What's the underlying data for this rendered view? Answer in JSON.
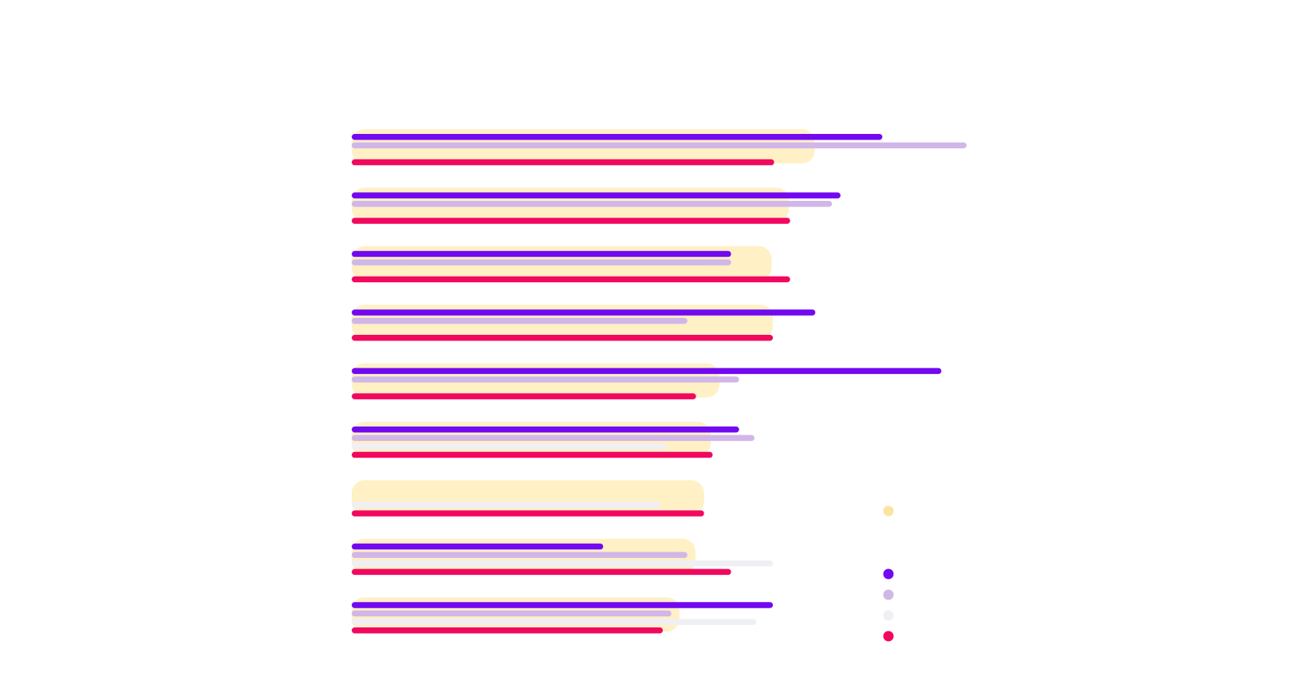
{
  "chart_data": {
    "type": "bar",
    "orientation": "horizontal",
    "title": "",
    "xlabel": "",
    "ylabel": "",
    "xlim": [
      0,
      100
    ],
    "grid": false,
    "legend_position": "bottom-right",
    "categories": [
      "",
      "",
      "",
      "",
      "",
      "",
      "",
      "",
      ""
    ],
    "background_series": {
      "name": "",
      "color": "#FFF0C6",
      "marker_color": "#FBE3A2",
      "values": [
        75.3,
        71.1,
        68.3,
        68.5,
        59.8,
        58.4,
        57.3,
        55.9,
        53.3
      ]
    },
    "series": [
      {
        "name": "",
        "color": "#7209F0",
        "values": [
          86.3,
          79.5,
          61.7,
          75.4,
          95.9,
          63.0,
          null,
          40.9,
          68.5
        ]
      },
      {
        "name": "",
        "color": "#D1B6E8",
        "values": [
          100.0,
          78.1,
          61.7,
          54.6,
          63.0,
          65.5,
          null,
          54.6,
          52.0
        ]
      },
      {
        "name": "",
        "color": "#F0EFF4",
        "values": [
          null,
          null,
          null,
          null,
          null,
          51.3,
          50.3,
          68.5,
          65.8
        ]
      },
      {
        "name": "",
        "color": "#F2085E",
        "values": [
          68.7,
          71.3,
          71.3,
          68.5,
          56.0,
          58.7,
          57.3,
          61.7,
          50.6
        ]
      }
    ]
  }
}
